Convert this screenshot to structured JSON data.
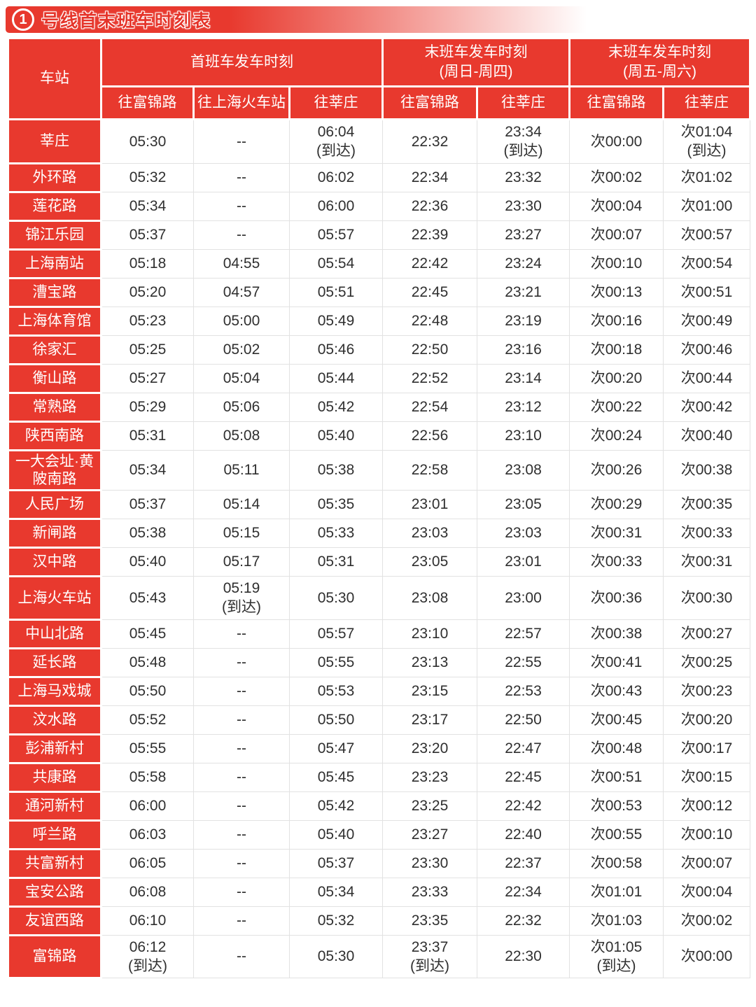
{
  "title": {
    "line_number": "1",
    "text": "号线首末班车时刻表"
  },
  "colors": {
    "accent_red": "#E8392E",
    "cell_border": "#E2E2E2",
    "text_dark": "#2F2F2F"
  },
  "table": {
    "station_header": "车站",
    "groups": [
      {
        "title": "首班车发车时刻",
        "columns": [
          "往富锦路",
          "往上海火车站",
          "往莘庄"
        ]
      },
      {
        "title": "末班车发车时刻\n(周日-周四)",
        "columns": [
          "往富锦路",
          "往莘庄"
        ]
      },
      {
        "title": "末班车发车时刻\n(周五-周六)",
        "columns": [
          "往富锦路",
          "往莘庄"
        ]
      }
    ],
    "rows": [
      {
        "station": "莘庄",
        "times": [
          "05:30",
          "--",
          "06:04\n(到达)",
          "22:32",
          "23:34\n(到达)",
          "次00:00",
          "次01:04\n(到达)"
        ]
      },
      {
        "station": "外环路",
        "times": [
          "05:32",
          "--",
          "06:02",
          "22:34",
          "23:32",
          "次00:02",
          "次01:02"
        ]
      },
      {
        "station": "莲花路",
        "times": [
          "05:34",
          "--",
          "06:00",
          "22:36",
          "23:30",
          "次00:04",
          "次01:00"
        ]
      },
      {
        "station": "锦江乐园",
        "times": [
          "05:37",
          "--",
          "05:57",
          "22:39",
          "23:27",
          "次00:07",
          "次00:57"
        ]
      },
      {
        "station": "上海南站",
        "times": [
          "05:18",
          "04:55",
          "05:54",
          "22:42",
          "23:24",
          "次00:10",
          "次00:54"
        ]
      },
      {
        "station": "漕宝路",
        "times": [
          "05:20",
          "04:57",
          "05:51",
          "22:45",
          "23:21",
          "次00:13",
          "次00:51"
        ]
      },
      {
        "station": "上海体育馆",
        "times": [
          "05:23",
          "05:00",
          "05:49",
          "22:48",
          "23:19",
          "次00:16",
          "次00:49"
        ]
      },
      {
        "station": "徐家汇",
        "times": [
          "05:25",
          "05:02",
          "05:46",
          "22:50",
          "23:16",
          "次00:18",
          "次00:46"
        ]
      },
      {
        "station": "衡山路",
        "times": [
          "05:27",
          "05:04",
          "05:44",
          "22:52",
          "23:14",
          "次00:20",
          "次00:44"
        ]
      },
      {
        "station": "常熟路",
        "times": [
          "05:29",
          "05:06",
          "05:42",
          "22:54",
          "23:12",
          "次00:22",
          "次00:42"
        ]
      },
      {
        "station": "陕西南路",
        "times": [
          "05:31",
          "05:08",
          "05:40",
          "22:56",
          "23:10",
          "次00:24",
          "次00:40"
        ]
      },
      {
        "station": "一大会址·黄陂南路",
        "times": [
          "05:34",
          "05:11",
          "05:38",
          "22:58",
          "23:08",
          "次00:26",
          "次00:38"
        ]
      },
      {
        "station": "人民广场",
        "times": [
          "05:37",
          "05:14",
          "05:35",
          "23:01",
          "23:05",
          "次00:29",
          "次00:35"
        ]
      },
      {
        "station": "新闸路",
        "times": [
          "05:38",
          "05:15",
          "05:33",
          "23:03",
          "23:03",
          "次00:31",
          "次00:33"
        ]
      },
      {
        "station": "汉中路",
        "times": [
          "05:40",
          "05:17",
          "05:31",
          "23:05",
          "23:01",
          "次00:33",
          "次00:31"
        ]
      },
      {
        "station": "上海火车站",
        "times": [
          "05:43",
          "05:19\n(到达)",
          "05:30",
          "23:08",
          "23:00",
          "次00:36",
          "次00:30"
        ]
      },
      {
        "station": "中山北路",
        "times": [
          "05:45",
          "--",
          "05:57",
          "23:10",
          "22:57",
          "次00:38",
          "次00:27"
        ]
      },
      {
        "station": "延长路",
        "times": [
          "05:48",
          "--",
          "05:55",
          "23:13",
          "22:55",
          "次00:41",
          "次00:25"
        ]
      },
      {
        "station": "上海马戏城",
        "times": [
          "05:50",
          "--",
          "05:53",
          "23:15",
          "22:53",
          "次00:43",
          "次00:23"
        ]
      },
      {
        "station": "汶水路",
        "times": [
          "05:52",
          "--",
          "05:50",
          "23:17",
          "22:50",
          "次00:45",
          "次00:20"
        ]
      },
      {
        "station": "彭浦新村",
        "times": [
          "05:55",
          "--",
          "05:47",
          "23:20",
          "22:47",
          "次00:48",
          "次00:17"
        ]
      },
      {
        "station": "共康路",
        "times": [
          "05:58",
          "--",
          "05:45",
          "23:23",
          "22:45",
          "次00:51",
          "次00:15"
        ]
      },
      {
        "station": "通河新村",
        "times": [
          "06:00",
          "--",
          "05:42",
          "23:25",
          "22:42",
          "次00:53",
          "次00:12"
        ]
      },
      {
        "station": "呼兰路",
        "times": [
          "06:03",
          "--",
          "05:40",
          "23:27",
          "22:40",
          "次00:55",
          "次00:10"
        ]
      },
      {
        "station": "共富新村",
        "times": [
          "06:05",
          "--",
          "05:37",
          "23:30",
          "22:37",
          "次00:58",
          "次00:07"
        ]
      },
      {
        "station": "宝安公路",
        "times": [
          "06:08",
          "--",
          "05:34",
          "23:33",
          "22:34",
          "次01:01",
          "次00:04"
        ]
      },
      {
        "station": "友谊西路",
        "times": [
          "06:10",
          "--",
          "05:32",
          "23:35",
          "22:32",
          "次01:03",
          "次00:02"
        ]
      },
      {
        "station": "富锦路",
        "times": [
          "06:12\n(到达)",
          "--",
          "05:30",
          "23:37\n(到达)",
          "22:30",
          "次01:05\n(到达)",
          "次00:00"
        ]
      }
    ]
  }
}
